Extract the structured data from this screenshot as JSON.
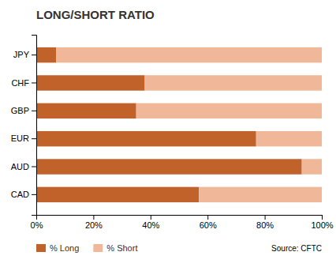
{
  "chart_data": {
    "type": "bar",
    "orientation": "horizontal",
    "stacked": true,
    "title": "LONG/SHORT RATIO",
    "categories": [
      "CAD",
      "AUD",
      "EUR",
      "GBP",
      "CHF",
      "JPY"
    ],
    "series": [
      {
        "name": "% Long",
        "color": "#C0622A",
        "values": [
          57,
          93,
          77,
          35,
          38,
          7
        ]
      },
      {
        "name": "% Short",
        "color": "#F0B899",
        "values": [
          43,
          7,
          23,
          65,
          62,
          93
        ]
      }
    ],
    "xlim": [
      0,
      100
    ],
    "xticks": [
      {
        "value": 0,
        "label": "0%"
      },
      {
        "value": 20,
        "label": "20%"
      },
      {
        "value": 40,
        "label": "40%"
      },
      {
        "value": 60,
        "label": "60%"
      },
      {
        "value": 80,
        "label": "80%"
      },
      {
        "value": 100,
        "label": "100%"
      }
    ],
    "grid": false,
    "legend": "bottom",
    "annotations": [
      "Source: CFTC"
    ]
  }
}
